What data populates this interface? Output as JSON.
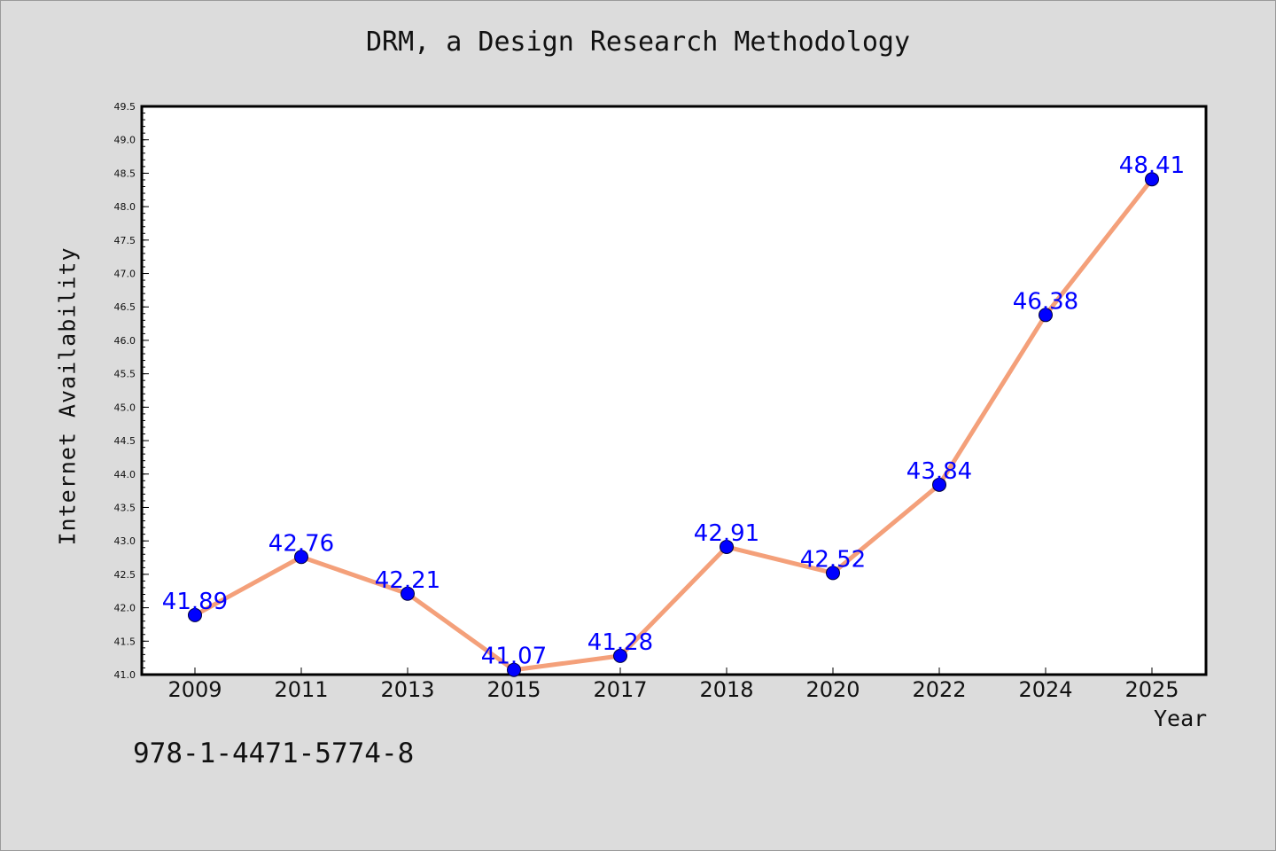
{
  "chart_data": {
    "type": "line",
    "title": "DRM, a Design Research Methodology",
    "xlabel": "Year",
    "ylabel": "Internet Availability",
    "categories": [
      "2009",
      "2011",
      "2013",
      "2015",
      "2017",
      "2018",
      "2020",
      "2022",
      "2024",
      "2025"
    ],
    "values": [
      41.89,
      42.76,
      42.21,
      41.07,
      41.28,
      42.91,
      42.52,
      43.84,
      46.38,
      48.41
    ],
    "data_labels": [
      "41.89",
      "42.76",
      "42.21",
      "41.07",
      "41.28",
      "42.91",
      "42.52",
      "43.84",
      "46.38",
      "48.41"
    ],
    "ylim": [
      41.0,
      49.5
    ],
    "yticks": [
      "41.0",
      "41.5",
      "42.0",
      "42.5",
      "43.0",
      "43.5",
      "44.0",
      "44.5",
      "45.0",
      "45.5",
      "46.0",
      "46.5",
      "47.0",
      "47.5",
      "48.0",
      "48.5",
      "49.0",
      "49.5"
    ],
    "grid": false,
    "line_color": "#f4a07a",
    "marker_color": "#0000ff",
    "label_color": "#0000ff",
    "background": "#dcdcdc",
    "plot_background": "#ffffff"
  },
  "footer": {
    "isbn": "978-1-4471-5774-8"
  }
}
